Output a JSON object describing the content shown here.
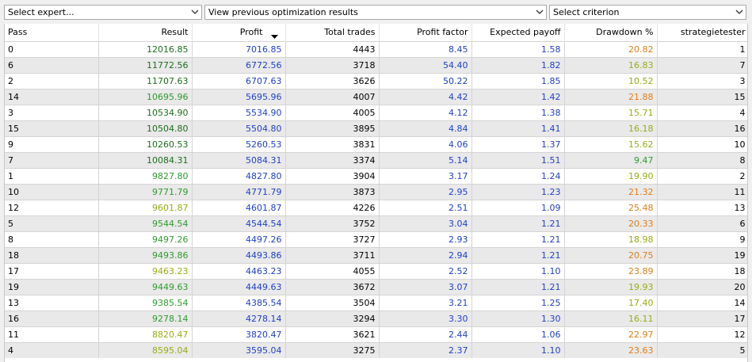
{
  "toolbar": {
    "expert": {
      "label": "Select expert..."
    },
    "optimization": {
      "label": "View previous optimization results"
    },
    "criterion": {
      "label": "Select criterion"
    }
  },
  "columns": [
    "Pass",
    "Result",
    "Profit",
    "Total trades",
    "Profit factor",
    "Expected payoff",
    "Drawdown %",
    "strategietester"
  ],
  "sorted_column": "Profit",
  "sort_direction": "descending",
  "colors": {
    "result_dark_green": "#1c6e1c",
    "result_green": "#2e9a2e",
    "result_olive": "#9aac12",
    "profit_blue": "#1f3fc8",
    "drawdown_olive": "#9aac12",
    "drawdown_orange": "#e07d16"
  },
  "rows": [
    {
      "pass": "0",
      "result": "12016.85",
      "result_color": "#1c6e1c",
      "profit": "7016.85",
      "trades": "4443",
      "pf": "8.45",
      "payoff": "1.58",
      "dd": "20.82",
      "dd_color": "#e07d16",
      "st": "1"
    },
    {
      "pass": "6",
      "result": "11772.56",
      "result_color": "#1c6e1c",
      "profit": "6772.56",
      "trades": "3718",
      "pf": "54.40",
      "payoff": "1.82",
      "dd": "16.83",
      "dd_color": "#9aac12",
      "st": "7"
    },
    {
      "pass": "2",
      "result": "11707.63",
      "result_color": "#1c6e1c",
      "profit": "6707.63",
      "trades": "3626",
      "pf": "50.22",
      "payoff": "1.85",
      "dd": "10.52",
      "dd_color": "#9aac12",
      "st": "3"
    },
    {
      "pass": "14",
      "result": "10695.96",
      "result_color": "#2e9a2e",
      "profit": "5695.96",
      "trades": "4007",
      "pf": "4.42",
      "payoff": "1.42",
      "dd": "21.88",
      "dd_color": "#e07d16",
      "st": "15"
    },
    {
      "pass": "3",
      "result": "10534.90",
      "result_color": "#1c6e1c",
      "profit": "5534.90",
      "trades": "4005",
      "pf": "4.12",
      "payoff": "1.38",
      "dd": "15.71",
      "dd_color": "#9aac12",
      "st": "4"
    },
    {
      "pass": "15",
      "result": "10504.80",
      "result_color": "#1c6e1c",
      "profit": "5504.80",
      "trades": "3895",
      "pf": "4.84",
      "payoff": "1.41",
      "dd": "16.18",
      "dd_color": "#9aac12",
      "st": "16"
    },
    {
      "pass": "9",
      "result": "10260.53",
      "result_color": "#1c6e1c",
      "profit": "5260.53",
      "trades": "3831",
      "pf": "4.06",
      "payoff": "1.37",
      "dd": "15.62",
      "dd_color": "#9aac12",
      "st": "10"
    },
    {
      "pass": "7",
      "result": "10084.31",
      "result_color": "#1c6e1c",
      "profit": "5084.31",
      "trades": "3374",
      "pf": "5.14",
      "payoff": "1.51",
      "dd": "9.47",
      "dd_color": "#2e9a2e",
      "st": "8"
    },
    {
      "pass": "1",
      "result": "9827.80",
      "result_color": "#2e9a2e",
      "profit": "4827.80",
      "trades": "3904",
      "pf": "3.17",
      "payoff": "1.24",
      "dd": "19.90",
      "dd_color": "#9aac12",
      "st": "2"
    },
    {
      "pass": "10",
      "result": "9771.79",
      "result_color": "#2e9a2e",
      "profit": "4771.79",
      "trades": "3873",
      "pf": "2.95",
      "payoff": "1.23",
      "dd": "21.32",
      "dd_color": "#e07d16",
      "st": "11"
    },
    {
      "pass": "12",
      "result": "9601.87",
      "result_color": "#9aac12",
      "profit": "4601.87",
      "trades": "4226",
      "pf": "2.51",
      "payoff": "1.09",
      "dd": "25.48",
      "dd_color": "#e07d16",
      "st": "13"
    },
    {
      "pass": "5",
      "result": "9544.54",
      "result_color": "#2e9a2e",
      "profit": "4544.54",
      "trades": "3752",
      "pf": "3.04",
      "payoff": "1.21",
      "dd": "20.33",
      "dd_color": "#e07d16",
      "st": "6"
    },
    {
      "pass": "8",
      "result": "9497.26",
      "result_color": "#2e9a2e",
      "profit": "4497.26",
      "trades": "3727",
      "pf": "2.93",
      "payoff": "1.21",
      "dd": "18.98",
      "dd_color": "#9aac12",
      "st": "9"
    },
    {
      "pass": "18",
      "result": "9493.86",
      "result_color": "#2e9a2e",
      "profit": "4493.86",
      "trades": "3711",
      "pf": "2.94",
      "payoff": "1.21",
      "dd": "20.75",
      "dd_color": "#e07d16",
      "st": "19"
    },
    {
      "pass": "17",
      "result": "9463.23",
      "result_color": "#9aac12",
      "profit": "4463.23",
      "trades": "4055",
      "pf": "2.52",
      "payoff": "1.10",
      "dd": "23.89",
      "dd_color": "#e07d16",
      "st": "18"
    },
    {
      "pass": "19",
      "result": "9449.63",
      "result_color": "#2e9a2e",
      "profit": "4449.63",
      "trades": "3672",
      "pf": "3.07",
      "payoff": "1.21",
      "dd": "19.93",
      "dd_color": "#9aac12",
      "st": "20"
    },
    {
      "pass": "13",
      "result": "9385.54",
      "result_color": "#2e9a2e",
      "profit": "4385.54",
      "trades": "3504",
      "pf": "3.21",
      "payoff": "1.25",
      "dd": "17.40",
      "dd_color": "#9aac12",
      "st": "14"
    },
    {
      "pass": "16",
      "result": "9278.14",
      "result_color": "#2e9a2e",
      "profit": "4278.14",
      "trades": "3294",
      "pf": "3.30",
      "payoff": "1.30",
      "dd": "16.11",
      "dd_color": "#9aac12",
      "st": "17"
    },
    {
      "pass": "11",
      "result": "8820.47",
      "result_color": "#9aac12",
      "profit": "3820.47",
      "trades": "3621",
      "pf": "2.44",
      "payoff": "1.06",
      "dd": "22.97",
      "dd_color": "#e07d16",
      "st": "12"
    },
    {
      "pass": "4",
      "result": "8595.04",
      "result_color": "#9aac12",
      "profit": "3595.04",
      "trades": "3275",
      "pf": "2.37",
      "payoff": "1.10",
      "dd": "23.63",
      "dd_color": "#e07d16",
      "st": "5"
    }
  ]
}
